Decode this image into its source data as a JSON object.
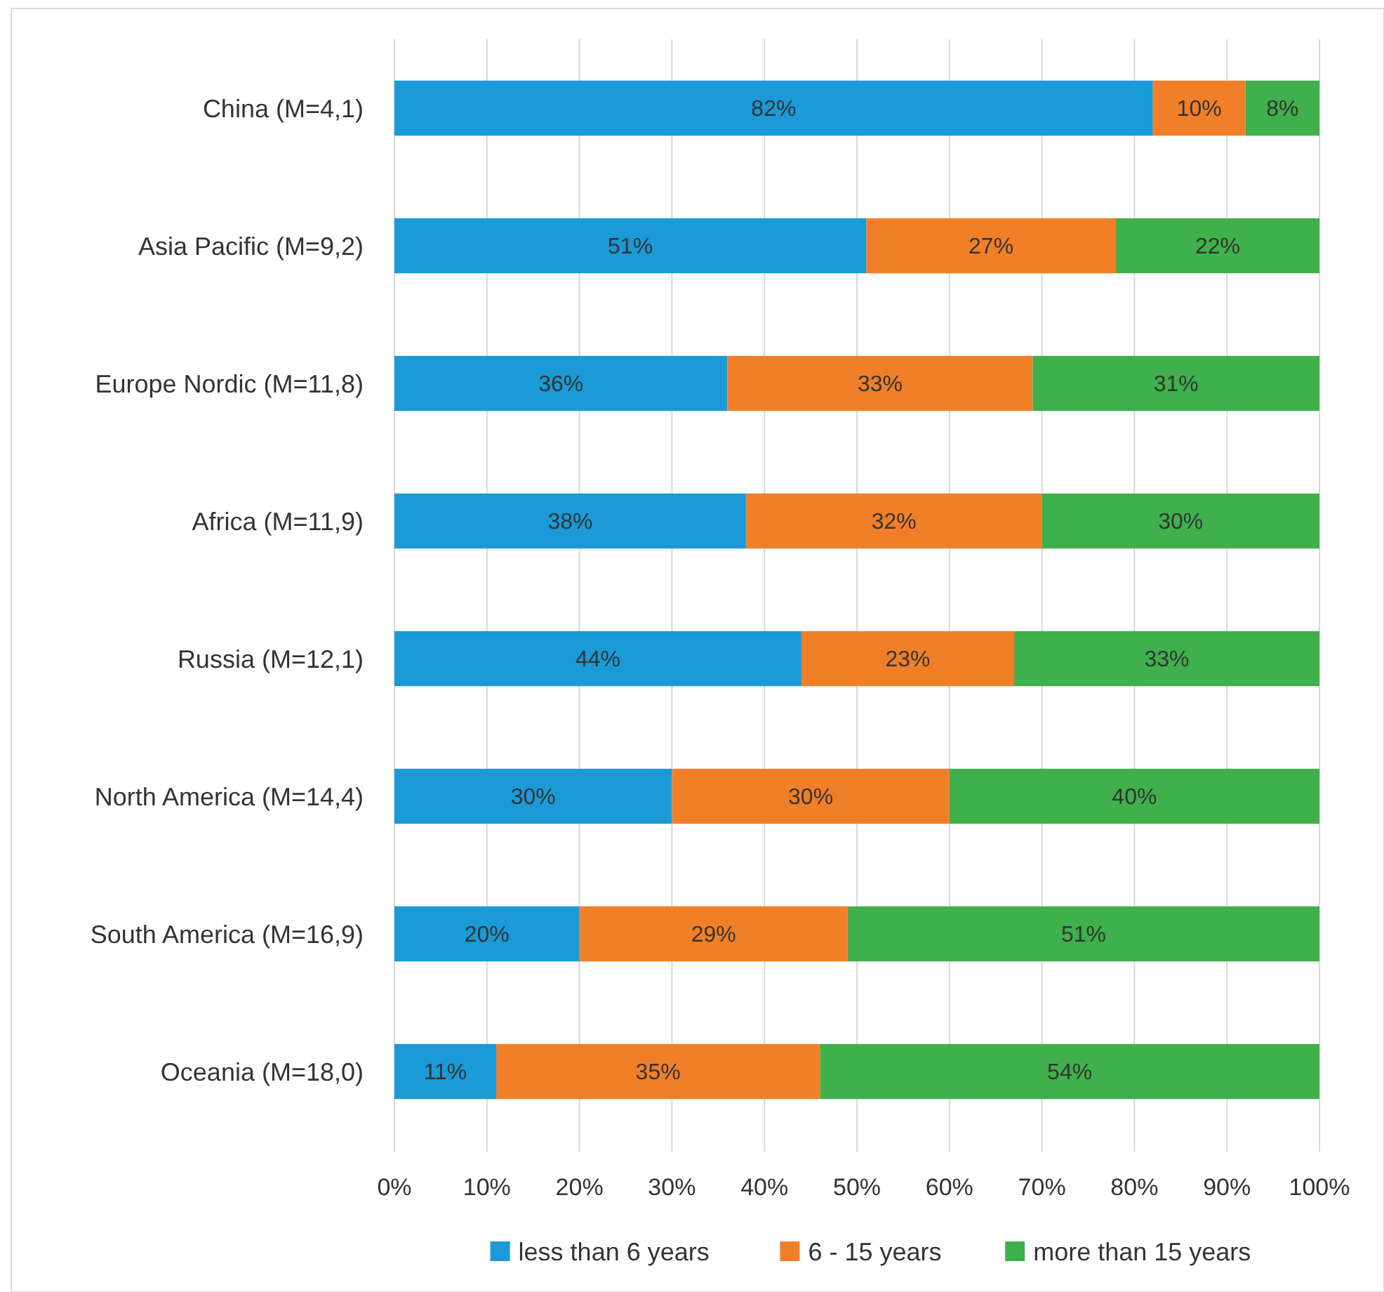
{
  "chart_data": {
    "type": "bar",
    "orientation": "horizontal",
    "stacked": true,
    "categories": [
      "China (M=4,1)",
      "Asia Pacific (M=9,2)",
      "Europe Nordic (M=11,8)",
      "Africa (M=11,9)",
      "Russia (M=12,1)",
      "North America (M=14,4)",
      "South America (M=16,9)",
      "Oceania (M=18,0)"
    ],
    "series": [
      {
        "name": "less than 6 years",
        "color": "#1a9ad6",
        "values": [
          82,
          51,
          36,
          38,
          44,
          30,
          20,
          11
        ],
        "value_labels": [
          "82%",
          "51%",
          "36%",
          "38%",
          "44%",
          "30%",
          "20%",
          "11%"
        ]
      },
      {
        "name": "6 - 15 years",
        "color": "#f07f28",
        "values": [
          10,
          27,
          33,
          32,
          23,
          30,
          29,
          35
        ],
        "value_labels": [
          "10%",
          "27%",
          "33%",
          "32%",
          "23%",
          "30%",
          "29%",
          "35%"
        ]
      },
      {
        "name": "more than 15 years",
        "color": "#3fb04b",
        "values": [
          8,
          22,
          31,
          30,
          33,
          40,
          51,
          54
        ],
        "value_labels": [
          "8%",
          "22%",
          "31%",
          "30%",
          "33%",
          "40%",
          "51%",
          "54%"
        ]
      }
    ],
    "xlim": [
      0,
      100
    ],
    "xticks": [
      {
        "value": 0,
        "label": "0%"
      },
      {
        "value": 10,
        "label": "10%"
      },
      {
        "value": 20,
        "label": "20%"
      },
      {
        "value": 30,
        "label": "30%"
      },
      {
        "value": 40,
        "label": "40%"
      },
      {
        "value": 50,
        "label": "50%"
      },
      {
        "value": 60,
        "label": "60%"
      },
      {
        "value": 70,
        "label": "70%"
      },
      {
        "value": 80,
        "label": "80%"
      },
      {
        "value": 90,
        "label": "90%"
      },
      {
        "value": 100,
        "label": "100%"
      }
    ],
    "grid": "x",
    "legend": "bottom"
  }
}
